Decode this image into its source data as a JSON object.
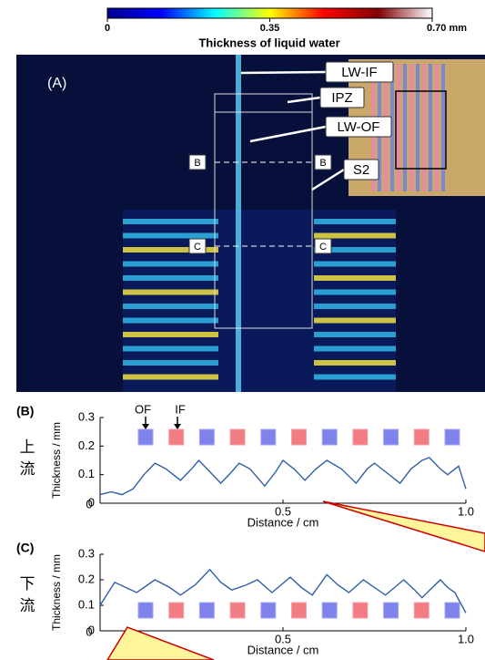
{
  "chart_data": [
    {
      "type": "colorbar",
      "title": "Thickness of liquid water",
      "xlim": [
        0,
        0.7
      ],
      "xticks": [
        0,
        0.35,
        {
          "value": 0.7,
          "label": "0.70 mm"
        }
      ],
      "colors": [
        "#00008f",
        "#0000ff",
        "#00ffff",
        "#ffff00",
        "#ff0000",
        "#800000",
        "#ffffff"
      ]
    },
    {
      "type": "line",
      "panel": "(B)",
      "side_label": "上流",
      "ylabel": "Thickness / mm",
      "xlabel": "Distance / cm",
      "annotations": [
        "OF",
        "IF"
      ],
      "xlim": [
        0,
        1
      ],
      "ylim": [
        0,
        0.3
      ],
      "xticks": [
        0,
        0.5,
        {
          "value": 1,
          "label": "1.0"
        }
      ],
      "yticks": [
        0,
        0.1,
        0.2,
        0.3
      ],
      "color": "#2f5fa8",
      "x": [
        0,
        0.03,
        0.06,
        0.09,
        0.12,
        0.15,
        0.18,
        0.22,
        0.25,
        0.27,
        0.3,
        0.33,
        0.36,
        0.38,
        0.41,
        0.45,
        0.48,
        0.5,
        0.53,
        0.56,
        0.59,
        0.62,
        0.66,
        0.7,
        0.73,
        0.75,
        0.78,
        0.82,
        0.85,
        0.88,
        0.9,
        0.93,
        0.95,
        0.98,
        1
      ],
      "values": [
        0.03,
        0.04,
        0.03,
        0.05,
        0.1,
        0.14,
        0.12,
        0.08,
        0.12,
        0.15,
        0.11,
        0.07,
        0.11,
        0.14,
        0.12,
        0.06,
        0.11,
        0.15,
        0.12,
        0.08,
        0.12,
        0.15,
        0.12,
        0.07,
        0.12,
        0.14,
        0.11,
        0.07,
        0.12,
        0.15,
        0.16,
        0.12,
        0.1,
        0.13,
        0.05
      ]
    },
    {
      "type": "line",
      "panel": "(C)",
      "side_label": "下流",
      "ylabel": "Thickness / mm",
      "xlabel": "Distance / cm",
      "xlim": [
        0,
        1
      ],
      "ylim": [
        0,
        0.3
      ],
      "xticks": [
        0,
        0.5,
        {
          "value": 1,
          "label": "1.0"
        }
      ],
      "yticks": [
        0,
        0.1,
        0.2,
        0.3
      ],
      "color": "#2f5fa8",
      "x": [
        0,
        0.04,
        0.07,
        0.1,
        0.15,
        0.19,
        0.22,
        0.26,
        0.3,
        0.33,
        0.36,
        0.4,
        0.43,
        0.47,
        0.52,
        0.55,
        0.58,
        0.62,
        0.65,
        0.68,
        0.72,
        0.75,
        0.78,
        0.83,
        0.86,
        0.88,
        0.93,
        0.95,
        0.97,
        1
      ],
      "values": [
        0.1,
        0.19,
        0.17,
        0.15,
        0.2,
        0.17,
        0.14,
        0.18,
        0.24,
        0.19,
        0.16,
        0.18,
        0.2,
        0.15,
        0.21,
        0.17,
        0.14,
        0.22,
        0.18,
        0.15,
        0.2,
        0.17,
        0.14,
        0.2,
        0.16,
        0.13,
        0.2,
        0.17,
        0.15,
        0.07
      ]
    }
  ],
  "panel_a": {
    "label": "(A)",
    "annotations": [
      "LW-IF",
      "IPZ",
      "LW-OF",
      "S2"
    ],
    "section_labels": [
      "B",
      "B",
      "C",
      "C"
    ]
  }
}
